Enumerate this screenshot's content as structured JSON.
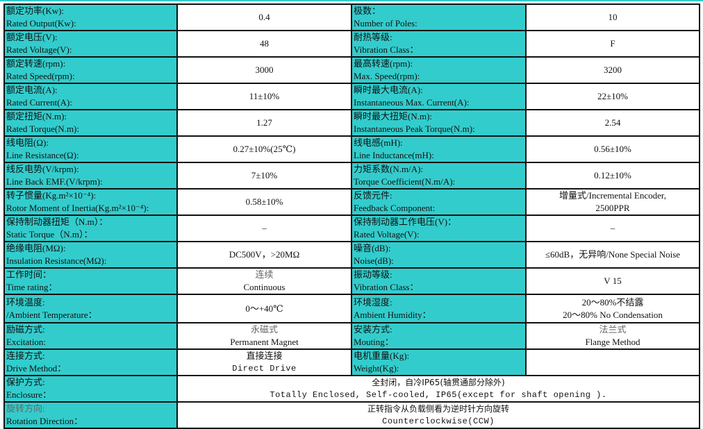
{
  "colors": {
    "label_bg": "#33CCCC",
    "value_bg": "#FFFFFF",
    "border": "#111111"
  },
  "rows": [
    {
      "l1": [
        "额定功率(Kw):",
        "Rated Output(Kw):"
      ],
      "v1": [
        "0.4"
      ],
      "l2": [
        "极数：",
        "Number of Poles:"
      ],
      "v2": [
        "10"
      ]
    },
    {
      "l1": [
        "额定电压(V):",
        "Rated Voltage(V):"
      ],
      "v1": [
        "48"
      ],
      "l2": [
        "耐热等级:",
        "Vibration Class："
      ],
      "v2": [
        "F"
      ]
    },
    {
      "l1": [
        "额定转速(rpm):",
        "Rated Speed(rpm):"
      ],
      "v1": [
        "3000"
      ],
      "l2": [
        "最高转速(rpm):",
        "Max. Speed(rpm):"
      ],
      "v2": [
        "3200"
      ]
    },
    {
      "l1": [
        "额定电流(A):",
        "Rated Current(A):"
      ],
      "v1": [
        "11±10%"
      ],
      "l2": [
        "瞬时最大电流(A):",
        "Instantaneous Max. Current(A):"
      ],
      "v2": [
        "22±10%"
      ]
    },
    {
      "l1": [
        "额定扭矩(N.m):",
        "Rated Torque(N.m):"
      ],
      "v1": [
        "1.27"
      ],
      "l2": [
        "瞬时最大扭矩(N.m):",
        "Instantaneous Peak Torque(N.m):"
      ],
      "v2": [
        "2.54"
      ]
    },
    {
      "l1": [
        "线电阻(Ω):",
        "Line Resistance(Ω):"
      ],
      "v1": [
        "0.27±10%(25℃)"
      ],
      "l2": [
        "线电感(mH):",
        "Line Inductance(mH):"
      ],
      "v2": [
        "0.56±10%"
      ]
    },
    {
      "l1": [
        "线反电势(V/krpm):",
        "Line Back EMF.(V/krpm):"
      ],
      "v1": [
        "7±10%"
      ],
      "l2": [
        "力矩系数(N.m/A):",
        "Torque Coefficient(N.m/A):"
      ],
      "v2": [
        "0.12±10%"
      ]
    },
    {
      "l1": [
        "转子惯量(Kg.m²×10⁻⁴):",
        "Rotor Moment of Inertia(Kg.m²×10⁻⁴):"
      ],
      "v1": [
        "0.58±10%"
      ],
      "l2": [
        "反馈元件:",
        "Feedback Component:"
      ],
      "v2": [
        "增量式/Incremental Encoder,",
        "2500PPR"
      ]
    },
    {
      "l1": [
        "保持制动器扭矩（N.m）：",
        "Static Torque（N.m）："
      ],
      "v1": [
        "–"
      ],
      "l2": [
        "保持制动器工作电压(V)：",
        "Rated Voltage(V):"
      ],
      "v2": [
        "–"
      ]
    },
    {
      "l1": [
        "绝缘电阻(MΩ):",
        "Insulation Resistance(MΩ):"
      ],
      "v1": [
        "DC500V，>20MΩ"
      ],
      "l2": [
        "噪音(dB):",
        "Noise(dB):"
      ],
      "v2": [
        "≤60dB，无异响/None Special Noise"
      ]
    },
    {
      "l1": [
        "工作时间：",
        "Time rating："
      ],
      "v1": [
        "连续",
        "Continuous"
      ],
      "l2": [
        "振动等级:",
        "Vibration Class："
      ],
      "v2": [
        "V 15"
      ]
    },
    {
      "l1": [
        "环境温度:",
        "/Ambient Temperature："
      ],
      "v1": [
        "0～+40℃"
      ],
      "l2": [
        "环境湿度:",
        "Ambient Humidity："
      ],
      "v2": [
        "20～80%不结露",
        "20～80% No Condensation"
      ]
    },
    {
      "l1": [
        "励磁方式:",
        "Excitation:"
      ],
      "v1": [
        "永磁式",
        "Permanent Magnet"
      ],
      "l2": [
        "安装方式:",
        "Mouting："
      ],
      "v2": [
        "法兰式",
        "Flange Method"
      ]
    },
    {
      "l1": [
        "连接方式:",
        "Drive Method："
      ],
      "v1": [
        "直接连接",
        "Direct Drive"
      ],
      "l2": [
        "电机重量(Kg):",
        "Weight(Kg):"
      ],
      "v2": []
    },
    {
      "l1": [
        "保护方式:",
        "Enclosure："
      ],
      "span": [
        "全封闭，自冷IP65(轴贯通部分除外)",
        "Totally Enclosed, Self-cooled, IP65(except for shaft opening )."
      ]
    },
    {
      "l1": [
        "旋转方向:",
        "Rotation Direction："
      ],
      "span": [
        "正转指令从负载侧看为逆时针方向旋转",
        "Counterclockwise(CCW)"
      ]
    }
  ]
}
